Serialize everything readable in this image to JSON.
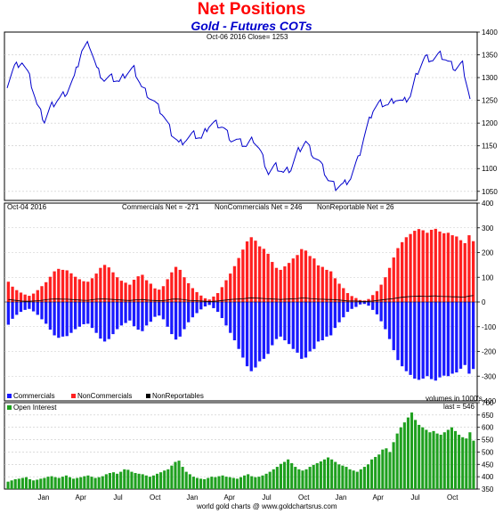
{
  "title": "Net Positions",
  "subtitle": "Gold - Futures COTs",
  "footer": "world gold charts @ www.goldchartsrus.com",
  "colors": {
    "price": "#0000cc",
    "commercials": "#1a1aff",
    "noncommercials": "#ff2020",
    "nonreportables": "#000000",
    "open_interest": "#1fa01f",
    "axis": "#000000",
    "grid": "#c8c8c8"
  },
  "chart_data": [
    {
      "type": "line",
      "panel": "price",
      "annotation": "Oct-06  2016    Close= 1253",
      "ylim": [
        1030,
        1400
      ],
      "yticks": [
        1050,
        1100,
        1150,
        1200,
        1250,
        1300,
        1350,
        1400
      ],
      "grid": true,
      "series": [
        {
          "values": [
            1285,
            1325,
            1335,
            1300,
            1240,
            1205,
            1240,
            1255,
            1270,
            1300,
            1360,
            1375,
            1320,
            1295,
            1300,
            1290,
            1310,
            1320,
            1280,
            1260,
            1240,
            1215,
            1180,
            1155,
            1165,
            1175,
            1165,
            1195,
            1200,
            1190,
            1165,
            1160,
            1150,
            1165,
            1135,
            1090,
            1105,
            1090,
            1100,
            1140,
            1160,
            1130,
            1110,
            1075,
            1060,
            1065,
            1080,
            1120,
            1180,
            1230,
            1245,
            1240,
            1255,
            1245,
            1260,
            1315,
            1345,
            1340,
            1350,
            1335,
            1320,
            1330,
            1253
          ]
        }
      ]
    },
    {
      "type": "bar",
      "panel": "net_positions",
      "annotation": "Oct-04  2016",
      "ylim": [
        -400,
        400
      ],
      "yticks": [
        -400,
        -300,
        -200,
        -100,
        0,
        100,
        200,
        300,
        400
      ],
      "legend_position": "bottom-left",
      "series": [
        {
          "name": "Commercials",
          "label": "Commercials Net = -271",
          "values": [
            -92,
            -68,
            -52,
            -40,
            -32,
            -28,
            -38,
            -52,
            -70,
            -88,
            -112,
            -135,
            -145,
            -140,
            -138,
            -125,
            -110,
            -100,
            -90,
            -88,
            -105,
            -125,
            -148,
            -160,
            -150,
            -130,
            -110,
            -95,
            -85,
            -75,
            -98,
            -112,
            -118,
            -95,
            -80,
            -60,
            -55,
            -70,
            -100,
            -130,
            -152,
            -140,
            -110,
            -82,
            -62,
            -45,
            -30,
            -18,
            -12,
            -25,
            -40,
            -65,
            -95,
            -125,
            -155,
            -190,
            -225,
            -260,
            -280,
            -265,
            -240,
            -230,
            -210,
            -175,
            -150,
            -140,
            -155,
            -170,
            -190,
            -205,
            -230,
            -225,
            -200,
            -190,
            -160,
            -155,
            -140,
            -135,
            -105,
            -82,
            -62,
            -40,
            -28,
            -20,
            -10,
            -8,
            -15,
            -32,
            -50,
            -78,
            -110,
            -150,
            -195,
            -235,
            -260,
            -280,
            -295,
            -310,
            -315,
            -310,
            -300,
            -312,
            -318,
            -305,
            -298,
            -300,
            -290,
            -285,
            -270,
            -255,
            -290,
            -271
          ]
        },
        {
          "name": "NonCommercials",
          "label": "NonCommercials Net = 246",
          "values": [
            82,
            62,
            48,
            38,
            30,
            25,
            34,
            48,
            64,
            80,
            102,
            124,
            134,
            130,
            128,
            116,
            102,
            92,
            84,
            82,
            96,
            115,
            138,
            150,
            140,
            120,
            100,
            86,
            78,
            70,
            90,
            104,
            110,
            88,
            74,
            55,
            50,
            64,
            92,
            120,
            142,
            130,
            100,
            76,
            56,
            40,
            26,
            15,
            10,
            22,
            36,
            60,
            88,
            115,
            145,
            178,
            212,
            245,
            262,
            248,
            225,
            215,
            195,
            162,
            138,
            130,
            144,
            158,
            176,
            190,
            214,
            208,
            186,
            176,
            148,
            142,
            130,
            124,
            96,
            74,
            56,
            36,
            24,
            16,
            8,
            6,
            12,
            28,
            44,
            70,
            100,
            138,
            180,
            218,
            242,
            262,
            275,
            288,
            295,
            290,
            280,
            292,
            296,
            285,
            278,
            280,
            270,
            265,
            250,
            238,
            270,
            246
          ]
        },
        {
          "name": "NonReportables",
          "label": "NonReportable Net = 26",
          "values": [
            10,
            8,
            6,
            4,
            3,
            3,
            4,
            5,
            7,
            9,
            11,
            12,
            12,
            11,
            11,
            10,
            9,
            8,
            7,
            7,
            9,
            11,
            12,
            12,
            11,
            10,
            9,
            8,
            7,
            6,
            8,
            9,
            10,
            8,
            7,
            6,
            5,
            6,
            8,
            11,
            12,
            11,
            9,
            7,
            6,
            5,
            4,
            3,
            2,
            3,
            4,
            6,
            8,
            10,
            11,
            12,
            13,
            15,
            17,
            16,
            15,
            14,
            13,
            12,
            11,
            10,
            11,
            12,
            13,
            14,
            16,
            16,
            14,
            13,
            11,
            11,
            10,
            10,
            9,
            8,
            6,
            4,
            4,
            4,
            3,
            2,
            3,
            4,
            6,
            8,
            10,
            12,
            14,
            17,
            19,
            21,
            22,
            23,
            24,
            23,
            22,
            24,
            25,
            23,
            22,
            22,
            21,
            21,
            20,
            20,
            24,
            26
          ]
        }
      ]
    },
    {
      "type": "bar",
      "panel": "open_interest",
      "annotation": "volumes in 1000's",
      "ylim": [
        350,
        700
      ],
      "yticks": [
        350,
        400,
        450,
        500,
        550,
        600,
        650,
        700
      ],
      "series": [
        {
          "name": "Open Interest",
          "label": "last = 546",
          "values": [
            380,
            385,
            390,
            392,
            395,
            398,
            390,
            385,
            388,
            392,
            395,
            400,
            402,
            398,
            395,
            400,
            405,
            398,
            392,
            395,
            398,
            402,
            405,
            400,
            395,
            398,
            402,
            410,
            415,
            418,
            412,
            420,
            430,
            428,
            420,
            415,
            412,
            410,
            405,
            400,
            405,
            412,
            418,
            425,
            430,
            445,
            460,
            465,
            440,
            420,
            410,
            400,
            395,
            392,
            390,
            395,
            400,
            398,
            402,
            405,
            400,
            398,
            395,
            392,
            398,
            405,
            410,
            402,
            398,
            400,
            405,
            412,
            420,
            430,
            440,
            452,
            460,
            470,
            455,
            440,
            430,
            425,
            430,
            440,
            448,
            455,
            462,
            470,
            478,
            470,
            460,
            450,
            445,
            440,
            430,
            425,
            420,
            430,
            440,
            450,
            470,
            480,
            490,
            510,
            515,
            500,
            540,
            575,
            600,
            620,
            640,
            660,
            630,
            610,
            600,
            590,
            580,
            585,
            575,
            570,
            580,
            590,
            600,
            585,
            570,
            560,
            555,
            580,
            546
          ]
        }
      ]
    }
  ],
  "x_month_labels": [
    "Jan",
    "Apr",
    "Jul",
    "Oct",
    "Jan",
    "Apr",
    "Jul",
    "Oct",
    "Jan",
    "Apr",
    "Jul",
    "Oct"
  ]
}
